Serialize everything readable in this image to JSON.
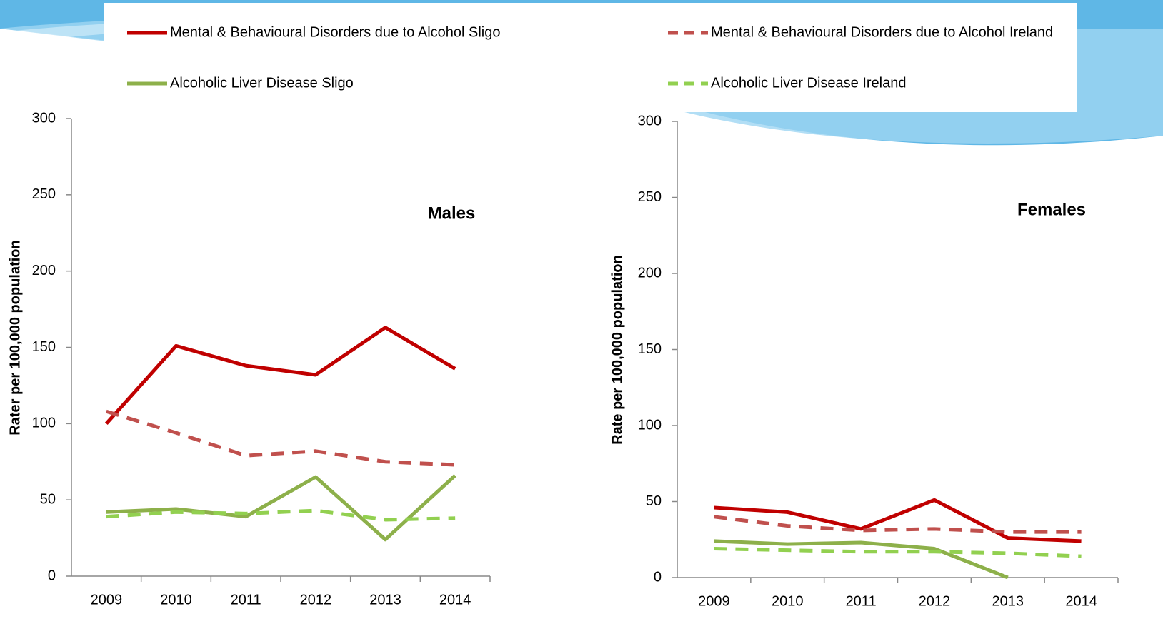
{
  "chart_data": [
    {
      "type": "line",
      "annotation": "Males",
      "y_label": "Rater per 100,000 population",
      "categories": [
        "2009",
        "2010",
        "2011",
        "2012",
        "2013",
        "2014"
      ],
      "ylim": [
        0,
        300
      ],
      "yticks": [
        0,
        50,
        100,
        150,
        200,
        250,
        300
      ],
      "series": [
        {
          "name": "Mental & Behavioural Disorders due to Alcohol Sligo",
          "color": "#c00000",
          "dash": false,
          "values": [
            100,
            151,
            138,
            132,
            163,
            136
          ]
        },
        {
          "name": "Mental & Behavioural Disorders due to Alcohol Ireland",
          "color": "#c0504d",
          "dash": true,
          "values": [
            108,
            94,
            79,
            82,
            75,
            73
          ]
        },
        {
          "name": "Alcoholic Liver Disease Sligo",
          "color": "#8db04a",
          "dash": false,
          "values": [
            42,
            44,
            39,
            65,
            24,
            66
          ]
        },
        {
          "name": "Alcoholic Liver Disease Ireland",
          "color": "#92d050",
          "dash": true,
          "values": [
            39,
            42,
            41,
            43,
            37,
            38
          ]
        }
      ]
    },
    {
      "type": "line",
      "annotation": "Females",
      "y_label": "Rate per 100,000 population",
      "categories": [
        "2009",
        "2010",
        "2011",
        "2012",
        "2013",
        "2014"
      ],
      "ylim": [
        0,
        300
      ],
      "yticks": [
        0,
        50,
        100,
        150,
        200,
        250,
        300
      ],
      "series": [
        {
          "values": [
            46,
            43,
            32,
            51,
            26,
            24
          ]
        },
        {
          "values": [
            40,
            34,
            31,
            32,
            30,
            30
          ]
        },
        {
          "values": [
            24,
            22,
            23,
            19,
            0,
            null
          ]
        },
        {
          "values": [
            19,
            18,
            17,
            17,
            16,
            14
          ]
        }
      ]
    }
  ]
}
